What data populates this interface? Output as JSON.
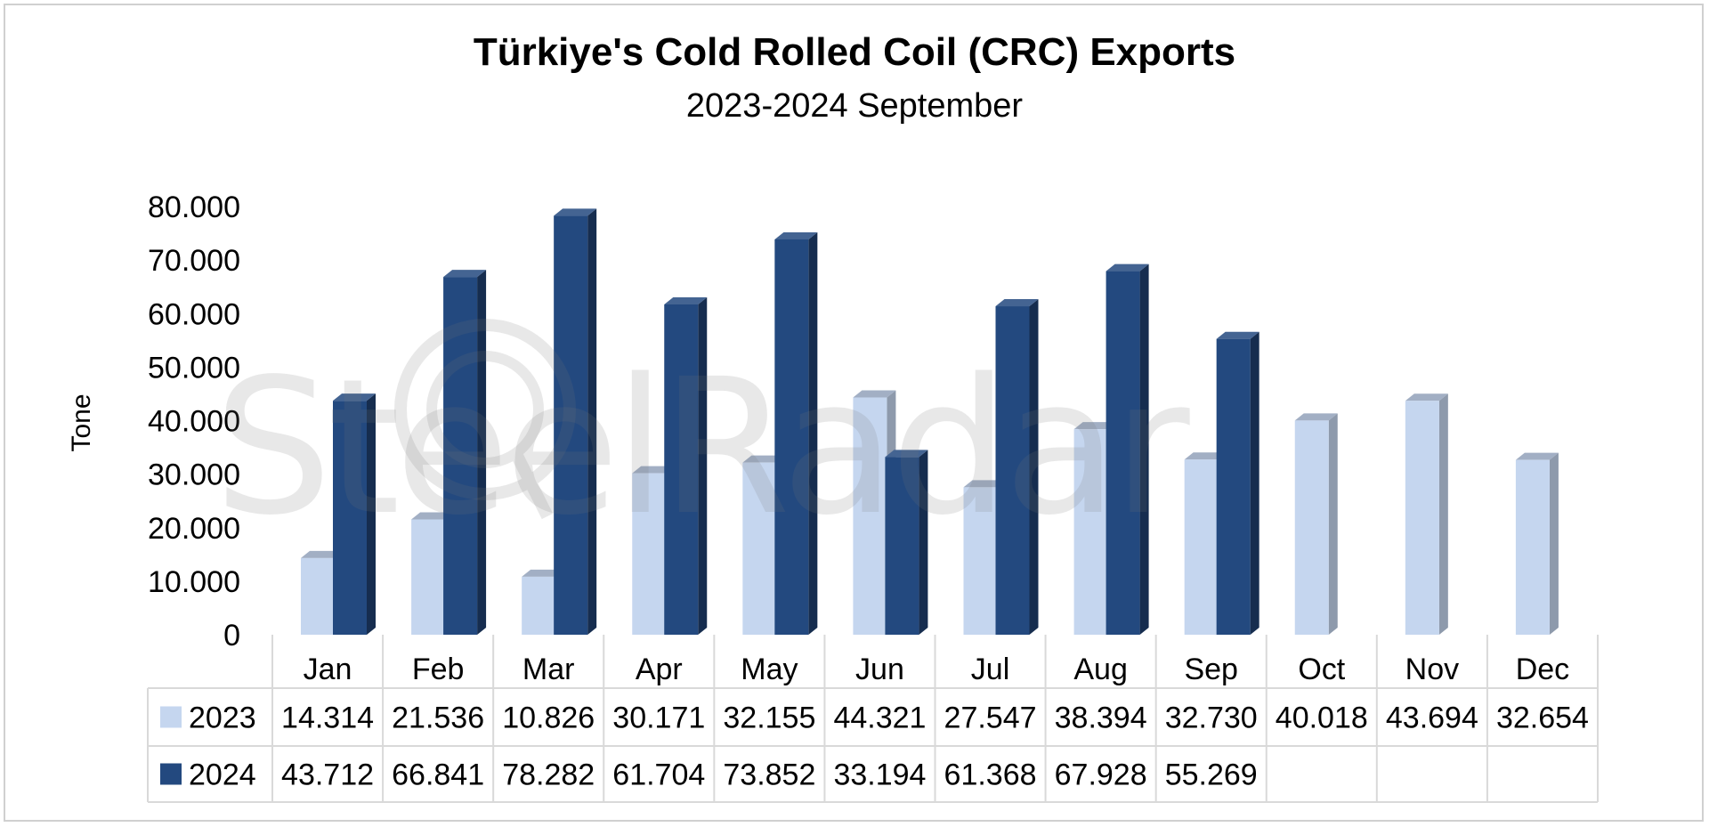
{
  "chart_data": {
    "type": "bar",
    "title": "Türkiye's Cold Rolled Coil (CRC) Exports",
    "subtitle": "2023-2024 September",
    "ylabel": "Tone",
    "ylim": [
      0,
      80000
    ],
    "yticks": [
      0,
      10000,
      20000,
      30000,
      40000,
      50000,
      60000,
      70000,
      80000
    ],
    "ytick_labels": [
      "0",
      "10.000",
      "20.000",
      "30.000",
      "40.000",
      "50.000",
      "60.000",
      "70.000",
      "80.000"
    ],
    "categories": [
      "Jan",
      "Feb",
      "Mar",
      "Apr",
      "May",
      "Jun",
      "Jul",
      "Aug",
      "Sep",
      "Oct",
      "Nov",
      "Dec"
    ],
    "series": [
      {
        "name": "2023",
        "color": "#c5d6ef",
        "values": [
          14314,
          21536,
          10826,
          30171,
          32155,
          44321,
          27547,
          38394,
          32730,
          40018,
          43694,
          32654
        ],
        "labels": [
          "14.314",
          "21.536",
          "10.826",
          "30.171",
          "32.155",
          "44.321",
          "27.547",
          "38.394",
          "32.730",
          "40.018",
          "43.694",
          "32.654"
        ]
      },
      {
        "name": "2024",
        "color": "#23497f",
        "values": [
          43712,
          66841,
          78282,
          61704,
          73852,
          33194,
          61368,
          67928,
          55269,
          null,
          null,
          null
        ],
        "labels": [
          "43.712",
          "66.841",
          "78.282",
          "61.704",
          "73.852",
          "33.194",
          "61.368",
          "67.928",
          "55.269",
          "",
          "",
          ""
        ]
      }
    ],
    "grid": false,
    "legend": "data-table",
    "watermark": "SteelRadar"
  }
}
